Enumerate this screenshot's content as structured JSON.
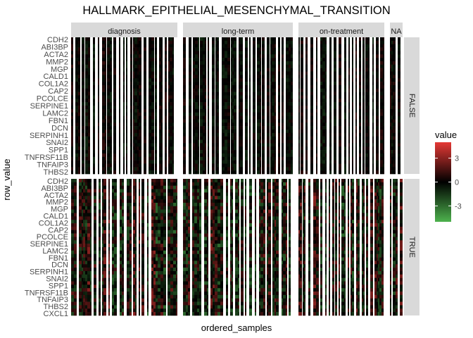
{
  "chart_data": {
    "type": "heatmap",
    "title": "HALLMARK_EPITHELIAL_MESENCHYMAL_TRANSITION",
    "xlabel": "ordered_samples",
    "ylabel": "row_value",
    "col_facets": [
      "diagnosis",
      "long-term",
      "on-treatment",
      "NA"
    ],
    "row_facets": [
      "FALSE",
      "TRUE"
    ],
    "row_labels_false": [
      "CDH2",
      "ABI3BP",
      "ACTA2",
      "MMP2",
      "MGP",
      "CALD1",
      "COL1A2",
      "CAP2",
      "PCOLCE",
      "SERPINE1",
      "LAMC2",
      "FBN1",
      "DCN",
      "SERPINH1",
      "SNAI2",
      "SPP1",
      "TNFRSF11B",
      "TNFAIP3",
      "THBS2"
    ],
    "row_labels_true": [
      "CDH2",
      "ABI3BP",
      "ACTA2",
      "MMP2",
      "MGP",
      "CALD1",
      "COL1A2",
      "CAP2",
      "PCOLCE",
      "SERPINE1",
      "LAMC2",
      "FBN1",
      "DCN",
      "SERPINH1",
      "SNAI2",
      "SPP1",
      "TNFRSF11B",
      "TNFAIP3",
      "THBS2",
      "CXCL1"
    ],
    "legend": {
      "title": "value",
      "ticks": [
        3,
        0,
        -3
      ],
      "range": [
        -5,
        5
      ],
      "low_color": "#4db24d",
      "mid_color": "#000000",
      "high_color": "#e53935",
      "position": "right"
    }
  },
  "colors": {
    "strip_bg": "#d9d9d9",
    "axis_text": "#4d4d4d",
    "high": "#e53935",
    "low": "#4db24d",
    "mid": "#000000"
  }
}
